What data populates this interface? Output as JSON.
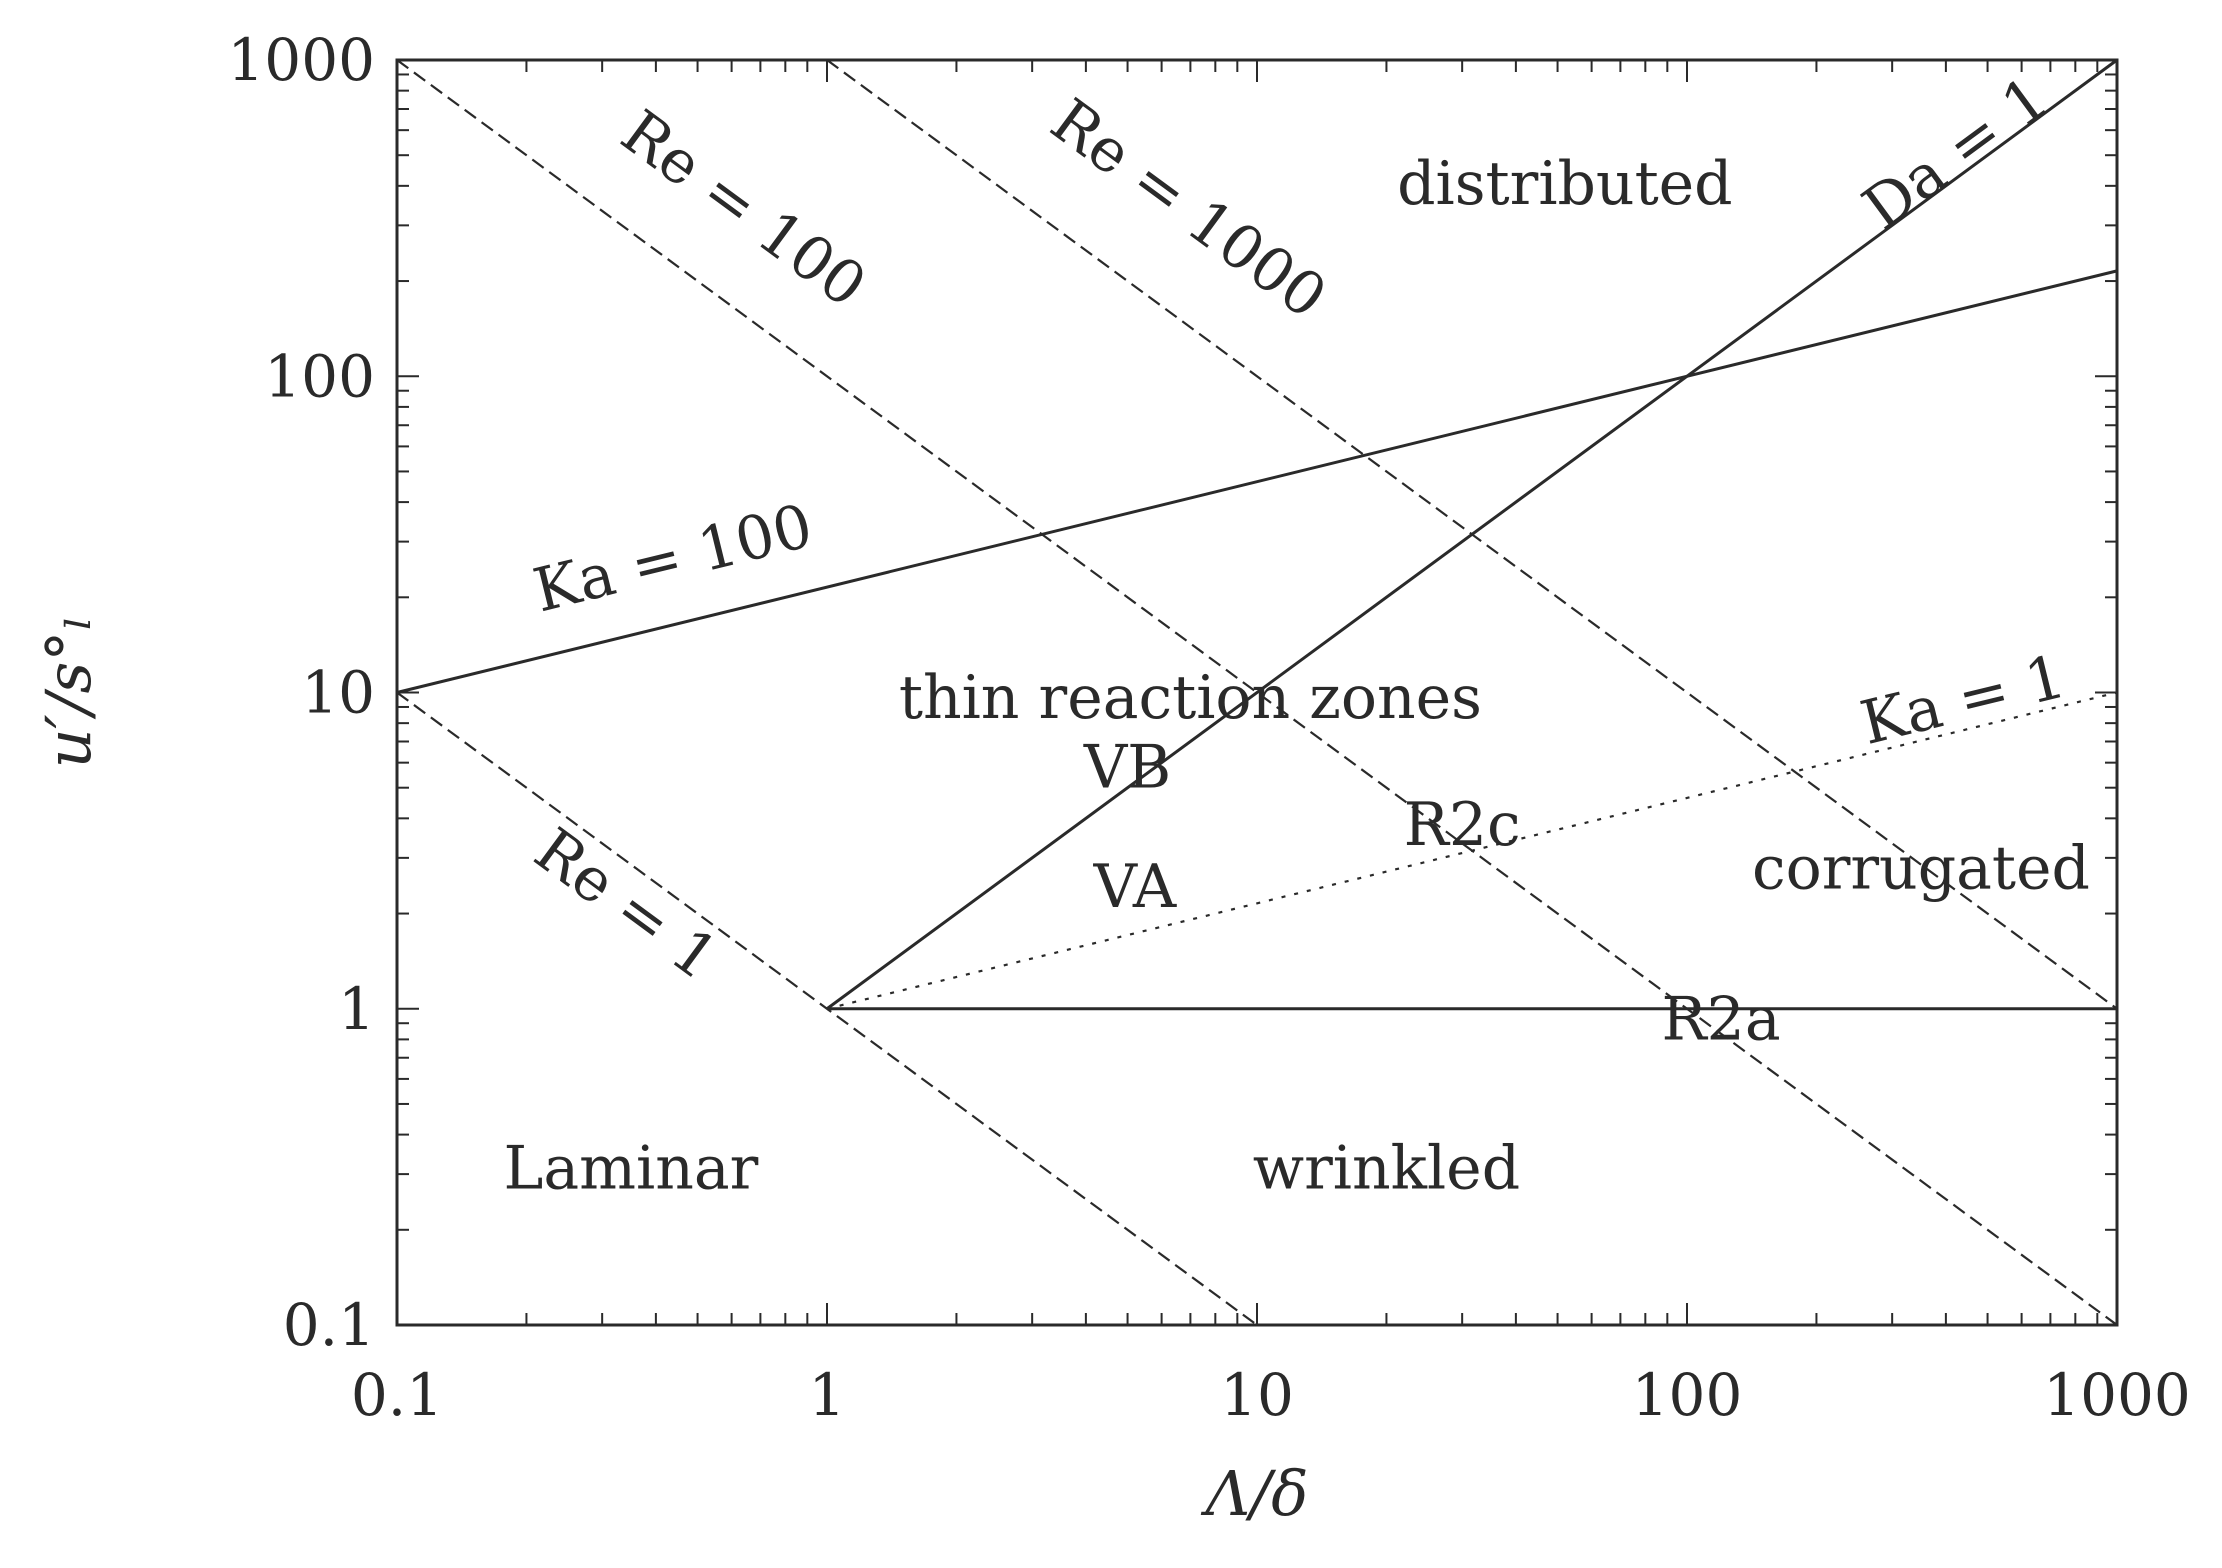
{
  "chart_data": {
    "type": "line",
    "title": "",
    "xlabel": "Λ/δ",
    "ylabel": "u′/s°ₗ",
    "x_scale": "log",
    "y_scale": "log",
    "xlim": [
      0.1,
      1000
    ],
    "ylim": [
      0.1,
      1000
    ],
    "grid": false,
    "legend": "none",
    "x_ticks": [
      "0.1",
      "1",
      "10",
      "100",
      "1000"
    ],
    "y_ticks": [
      "0.1",
      "1",
      "10",
      "100",
      "1000"
    ],
    "series": [
      {
        "name": "Re = 1",
        "style": "dashed",
        "x": [
          0.1,
          10
        ],
        "y": [
          10,
          0.1
        ]
      },
      {
        "name": "Re = 100",
        "style": "dashed",
        "x": [
          0.1,
          1000
        ],
        "y": [
          1000,
          0.1
        ]
      },
      {
        "name": "Re = 1000",
        "style": "dashed",
        "x": [
          1,
          1000
        ],
        "y": [
          1000,
          1
        ]
      },
      {
        "name": "Ka = 100",
        "style": "solid",
        "x": [
          0.1,
          1000
        ],
        "y": [
          10,
          215.4
        ]
      },
      {
        "name": "Ka = 1",
        "style": "dotted",
        "x": [
          1,
          1000
        ],
        "y": [
          1,
          10
        ]
      },
      {
        "name": "Da = 1",
        "style": "solid",
        "x": [
          1,
          1000
        ],
        "y": [
          1,
          1000
        ]
      },
      {
        "style": "solid",
        "x": [
          1,
          1000
        ],
        "y": [
          1,
          1
        ]
      }
    ],
    "line_labels": [
      {
        "text": "Re = 100",
        "x": 0.6,
        "y": 300
      },
      {
        "text": "Re = 1000",
        "x": 6.5,
        "y": 300
      },
      {
        "text": "Da = 1",
        "x": 450,
        "y": 450
      },
      {
        "text": "Ka = 100",
        "x": 0.45,
        "y": 23
      },
      {
        "text": "Ka = 1",
        "x": 450,
        "y": 8.2
      },
      {
        "text": "Re = 1",
        "x": 0.32,
        "y": 1.9
      }
    ],
    "region_labels": [
      {
        "text": "distributed",
        "x": 52,
        "y": 350
      },
      {
        "text": "thin reaction zones",
        "x": 7,
        "y": 8.3
      },
      {
        "text": "VB",
        "x": 5,
        "y": 5
      },
      {
        "text": "R2c",
        "x": 30,
        "y": 3.3
      },
      {
        "text": "VA",
        "x": 5.2,
        "y": 2.1
      },
      {
        "text": "corrugated",
        "x": 350,
        "y": 2.4
      },
      {
        "text": "R2a",
        "x": 120,
        "y": 0.8
      },
      {
        "text": "Laminar",
        "x": 0.35,
        "y": 0.27
      },
      {
        "text": "wrinkled",
        "x": 20,
        "y": 0.27
      }
    ]
  }
}
